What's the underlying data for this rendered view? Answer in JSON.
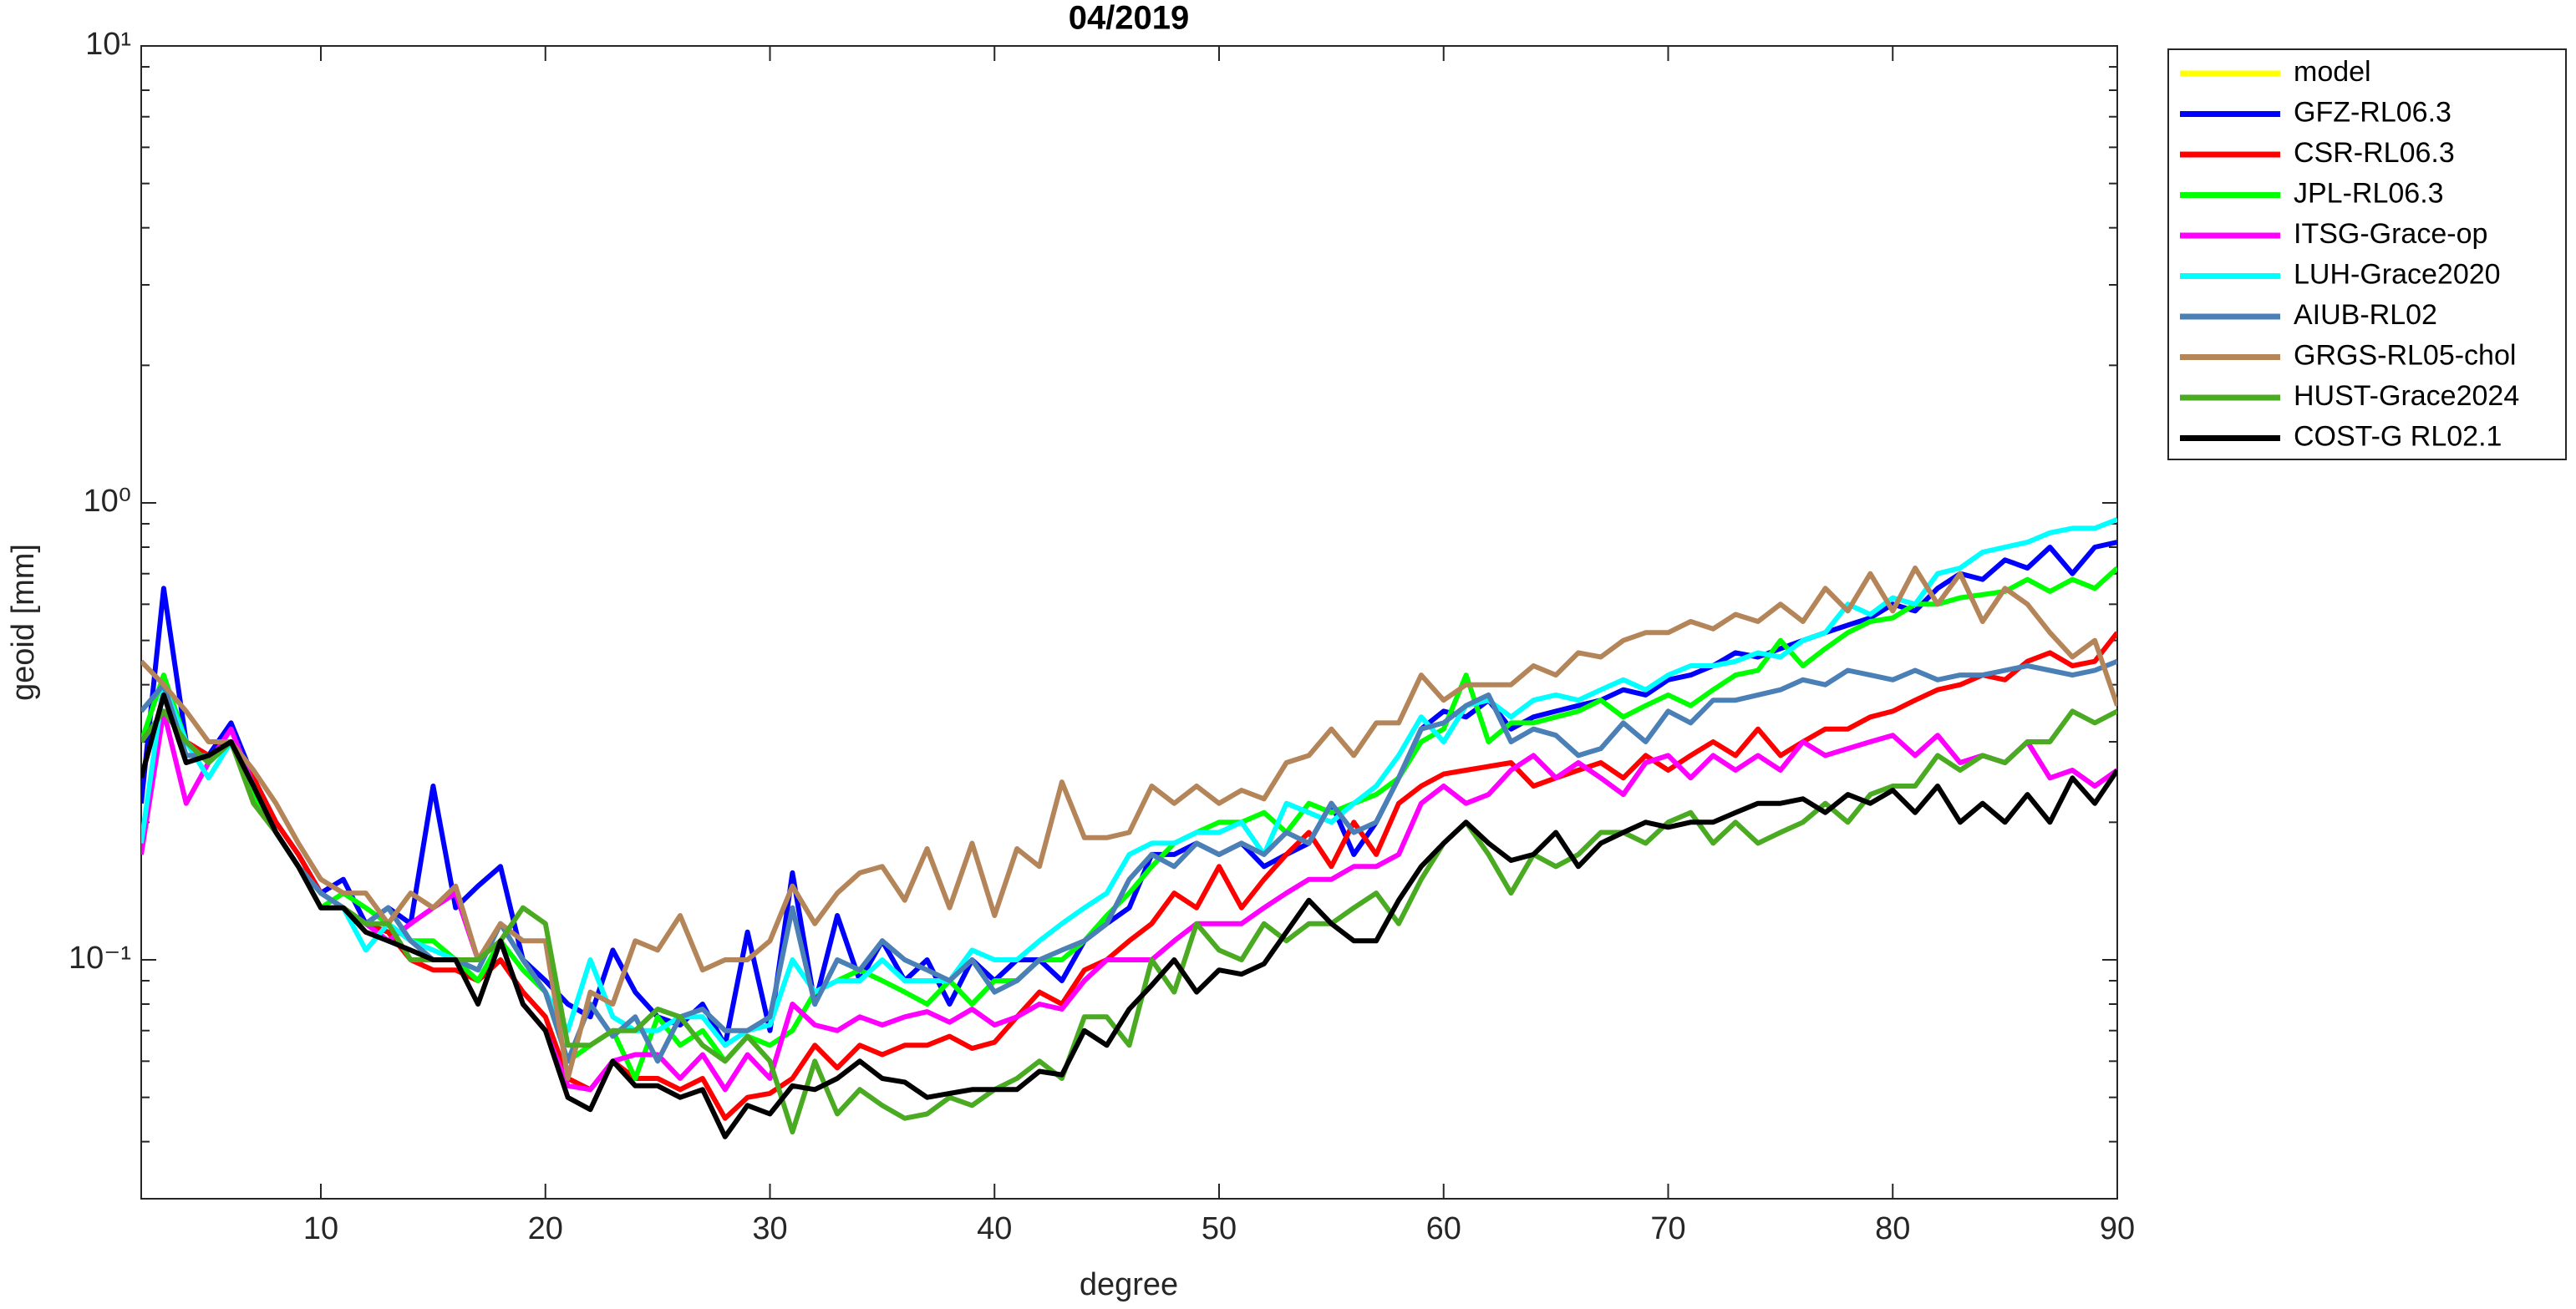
{
  "chart_data": {
    "type": "line",
    "title": "04/2019",
    "xlabel": "degree",
    "ylabel": "geoid [mm]",
    "log_y": true,
    "grid": false,
    "legend": "outside-right",
    "xlim": [
      2,
      90
    ],
    "xticks": [
      10,
      20,
      30,
      40,
      50,
      60,
      70,
      80,
      90
    ],
    "ylim": [
      0.03,
      10
    ],
    "yticks": [
      {
        "value": 0.1,
        "label": "10⁻¹"
      },
      {
        "value": 1,
        "label": "10⁰"
      },
      {
        "value": 10,
        "label": "10¹"
      }
    ],
    "yminorticks": [
      0.04,
      0.05,
      0.06,
      0.07,
      0.08,
      0.09,
      0.2,
      0.3,
      0.4,
      0.5,
      0.6,
      0.7,
      0.8,
      0.9,
      2,
      3,
      4,
      5,
      6,
      7,
      8,
      9
    ],
    "x": [
      2,
      3,
      4,
      5,
      6,
      7,
      8,
      9,
      10,
      11,
      12,
      13,
      14,
      15,
      16,
      17,
      18,
      19,
      20,
      21,
      22,
      23,
      24,
      25,
      26,
      27,
      28,
      29,
      30,
      31,
      32,
      33,
      34,
      35,
      36,
      37,
      38,
      39,
      40,
      41,
      42,
      43,
      44,
      45,
      46,
      47,
      48,
      49,
      50,
      51,
      52,
      53,
      54,
      55,
      56,
      57,
      58,
      59,
      60,
      61,
      62,
      63,
      64,
      65,
      66,
      67,
      68,
      69,
      70,
      71,
      72,
      73,
      74,
      75,
      76,
      77,
      78,
      79,
      80,
      81,
      82,
      83,
      84,
      85,
      86,
      87,
      88,
      89,
      90
    ],
    "series": [
      {
        "name": "model",
        "color": "#ffff00",
        "values": [
          null,
          null,
          null,
          null,
          null,
          null,
          null,
          null,
          null,
          null,
          null,
          null,
          null,
          null,
          null,
          null,
          null,
          null,
          null,
          null,
          null,
          null,
          null,
          null,
          null,
          null,
          null,
          null,
          null,
          null,
          null,
          null,
          null,
          null,
          null,
          null,
          null,
          null,
          null,
          null,
          null,
          null,
          null,
          null,
          null,
          null,
          null,
          null,
          null,
          null,
          null,
          null,
          null,
          null,
          null,
          null,
          null,
          null,
          null,
          null,
          null,
          null,
          null,
          null,
          null,
          null,
          null,
          null,
          null,
          null,
          null,
          null,
          null,
          null,
          null,
          null,
          null,
          null,
          null,
          null,
          null,
          null,
          null,
          null,
          null,
          null,
          null,
          null,
          null
        ]
      },
      {
        "name": "GFZ-RL06.3",
        "color": "#0000ff",
        "values": [
          0.22,
          0.65,
          0.3,
          0.28,
          0.33,
          0.25,
          0.2,
          0.17,
          0.14,
          0.15,
          0.12,
          0.13,
          0.12,
          0.24,
          0.13,
          0.145,
          0.16,
          0.1,
          0.09,
          0.08,
          0.075,
          0.105,
          0.085,
          0.075,
          0.072,
          0.08,
          0.065,
          0.115,
          0.07,
          0.155,
          0.08,
          0.125,
          0.09,
          0.11,
          0.09,
          0.1,
          0.08,
          0.1,
          0.09,
          0.1,
          0.1,
          0.09,
          0.11,
          0.12,
          0.13,
          0.17,
          0.17,
          0.18,
          0.17,
          0.18,
          0.16,
          0.17,
          0.18,
          0.22,
          0.17,
          0.2,
          0.25,
          0.32,
          0.35,
          0.34,
          0.37,
          0.32,
          0.34,
          0.35,
          0.36,
          0.37,
          0.39,
          0.38,
          0.41,
          0.42,
          0.44,
          0.47,
          0.46,
          0.48,
          0.5,
          0.52,
          0.54,
          0.56,
          0.6,
          0.58,
          0.65,
          0.7,
          0.68,
          0.75,
          0.72,
          0.8,
          0.7,
          0.8,
          0.82
        ]
      },
      {
        "name": "CSR-RL06.3",
        "color": "#ff0000",
        "values": [
          0.25,
          0.38,
          0.3,
          0.28,
          0.3,
          0.25,
          0.2,
          0.17,
          0.14,
          0.13,
          0.12,
          0.115,
          0.1,
          0.095,
          0.095,
          0.09,
          0.1,
          0.085,
          0.075,
          0.055,
          0.052,
          0.06,
          0.055,
          0.055,
          0.052,
          0.055,
          0.045,
          0.05,
          0.051,
          0.055,
          0.065,
          0.058,
          0.065,
          0.062,
          0.065,
          0.065,
          0.068,
          0.064,
          0.066,
          0.075,
          0.085,
          0.08,
          0.095,
          0.1,
          0.11,
          0.12,
          0.14,
          0.13,
          0.16,
          0.13,
          0.15,
          0.17,
          0.19,
          0.16,
          0.2,
          0.17,
          0.22,
          0.24,
          0.255,
          0.26,
          0.265,
          0.27,
          0.24,
          0.25,
          0.26,
          0.27,
          0.25,
          0.28,
          0.26,
          0.28,
          0.3,
          0.28,
          0.32,
          0.28,
          0.3,
          0.32,
          0.32,
          0.34,
          0.35,
          0.37,
          0.39,
          0.4,
          0.42,
          0.41,
          0.45,
          0.47,
          0.44,
          0.45,
          0.52
        ]
      },
      {
        "name": "JPL-RL06.3",
        "color": "#00ff00",
        "values": [
          0.3,
          0.42,
          0.3,
          0.27,
          0.3,
          0.23,
          0.19,
          0.16,
          0.13,
          0.14,
          0.13,
          0.12,
          0.11,
          0.11,
          0.1,
          0.09,
          0.11,
          0.095,
          0.085,
          0.06,
          0.065,
          0.07,
          0.055,
          0.075,
          0.065,
          0.07,
          0.06,
          0.068,
          0.065,
          0.07,
          0.085,
          0.09,
          0.095,
          0.09,
          0.085,
          0.08,
          0.09,
          0.08,
          0.09,
          0.09,
          0.1,
          0.1,
          0.11,
          0.125,
          0.14,
          0.16,
          0.18,
          0.19,
          0.2,
          0.2,
          0.21,
          0.19,
          0.22,
          0.21,
          0.22,
          0.23,
          0.25,
          0.3,
          0.32,
          0.42,
          0.3,
          0.33,
          0.33,
          0.34,
          0.35,
          0.37,
          0.34,
          0.36,
          0.38,
          0.36,
          0.39,
          0.42,
          0.43,
          0.5,
          0.44,
          0.48,
          0.52,
          0.55,
          0.56,
          0.6,
          0.6,
          0.62,
          0.63,
          0.64,
          0.68,
          0.64,
          0.68,
          0.65,
          0.72
        ]
      },
      {
        "name": "ITSG-Grace-op",
        "color": "#ff00ff",
        "values": [
          0.17,
          0.35,
          0.22,
          0.27,
          0.32,
          0.24,
          0.19,
          0.16,
          0.14,
          0.13,
          0.12,
          0.11,
          0.12,
          0.13,
          0.14,
          0.1,
          0.11,
          0.08,
          0.07,
          0.053,
          0.052,
          0.06,
          0.062,
          0.062,
          0.055,
          0.062,
          0.052,
          0.062,
          0.055,
          0.08,
          0.072,
          0.07,
          0.075,
          0.072,
          0.075,
          0.077,
          0.073,
          0.078,
          0.072,
          0.075,
          0.08,
          0.078,
          0.09,
          0.1,
          0.1,
          0.1,
          0.11,
          0.12,
          0.12,
          0.12,
          0.13,
          0.14,
          0.15,
          0.15,
          0.16,
          0.16,
          0.17,
          0.22,
          0.24,
          0.22,
          0.23,
          0.26,
          0.28,
          0.25,
          0.27,
          0.25,
          0.23,
          0.27,
          0.28,
          0.25,
          0.28,
          0.26,
          0.28,
          0.26,
          0.3,
          0.28,
          0.29,
          0.3,
          0.31,
          0.28,
          0.31,
          0.27,
          0.28,
          0.27,
          0.3,
          0.25,
          0.26,
          0.24,
          0.26
        ]
      },
      {
        "name": "LUH-Grace2020",
        "color": "#00ffff",
        "values": [
          0.18,
          0.4,
          0.3,
          0.25,
          0.3,
          0.24,
          0.19,
          0.16,
          0.14,
          0.13,
          0.105,
          0.12,
          0.11,
          0.105,
          0.1,
          0.095,
          0.12,
          0.1,
          0.085,
          0.07,
          0.1,
          0.075,
          0.07,
          0.07,
          0.075,
          0.075,
          0.065,
          0.07,
          0.072,
          0.1,
          0.085,
          0.09,
          0.09,
          0.1,
          0.09,
          0.09,
          0.09,
          0.105,
          0.1,
          0.1,
          0.11,
          0.12,
          0.13,
          0.14,
          0.17,
          0.18,
          0.18,
          0.19,
          0.19,
          0.2,
          0.17,
          0.22,
          0.21,
          0.2,
          0.22,
          0.24,
          0.28,
          0.34,
          0.3,
          0.36,
          0.37,
          0.34,
          0.37,
          0.38,
          0.37,
          0.39,
          0.41,
          0.39,
          0.42,
          0.44,
          0.44,
          0.45,
          0.47,
          0.46,
          0.5,
          0.52,
          0.6,
          0.57,
          0.62,
          0.6,
          0.7,
          0.72,
          0.78,
          0.8,
          0.82,
          0.86,
          0.88,
          0.88,
          0.92
        ]
      },
      {
        "name": "AIUB-RL02",
        "color": "#4a80b6",
        "values": [
          0.35,
          0.4,
          0.28,
          0.28,
          0.3,
          0.24,
          0.19,
          0.16,
          0.14,
          0.13,
          0.12,
          0.13,
          0.11,
          0.1,
          0.1,
          0.095,
          0.12,
          0.1,
          0.085,
          0.06,
          0.08,
          0.068,
          0.075,
          0.06,
          0.075,
          0.078,
          0.07,
          0.07,
          0.075,
          0.13,
          0.08,
          0.1,
          0.095,
          0.11,
          0.1,
          0.095,
          0.09,
          0.1,
          0.085,
          0.09,
          0.1,
          0.105,
          0.11,
          0.12,
          0.15,
          0.17,
          0.16,
          0.18,
          0.17,
          0.18,
          0.17,
          0.19,
          0.18,
          0.22,
          0.19,
          0.2,
          0.25,
          0.32,
          0.33,
          0.36,
          0.38,
          0.3,
          0.32,
          0.31,
          0.28,
          0.29,
          0.33,
          0.3,
          0.35,
          0.33,
          0.37,
          0.37,
          0.38,
          0.39,
          0.41,
          0.4,
          0.43,
          0.42,
          0.41,
          0.43,
          0.41,
          0.42,
          0.42,
          0.43,
          0.44,
          0.43,
          0.42,
          0.43,
          0.45
        ]
      },
      {
        "name": "GRGS-RL05-chol",
        "color": "#b5855a",
        "values": [
          0.45,
          0.4,
          0.35,
          0.3,
          0.3,
          0.26,
          0.22,
          0.18,
          0.15,
          0.14,
          0.14,
          0.12,
          0.14,
          0.13,
          0.145,
          0.1,
          0.12,
          0.11,
          0.11,
          0.055,
          0.085,
          0.08,
          0.11,
          0.105,
          0.125,
          0.095,
          0.1,
          0.1,
          0.11,
          0.145,
          0.12,
          0.14,
          0.155,
          0.16,
          0.135,
          0.175,
          0.13,
          0.18,
          0.125,
          0.175,
          0.16,
          0.245,
          0.185,
          0.185,
          0.19,
          0.24,
          0.22,
          0.24,
          0.22,
          0.235,
          0.225,
          0.27,
          0.28,
          0.32,
          0.28,
          0.33,
          0.33,
          0.42,
          0.37,
          0.4,
          0.4,
          0.4,
          0.44,
          0.42,
          0.47,
          0.46,
          0.5,
          0.52,
          0.52,
          0.55,
          0.53,
          0.57,
          0.55,
          0.6,
          0.55,
          0.65,
          0.58,
          0.7,
          0.58,
          0.72,
          0.6,
          0.7,
          0.55,
          0.65,
          0.6,
          0.52,
          0.46,
          0.5,
          0.36
        ]
      },
      {
        "name": "HUST-Grace2024",
        "color": "#4aaa22",
        "values": [
          0.3,
          0.35,
          0.3,
          0.27,
          0.3,
          0.22,
          0.19,
          0.16,
          0.13,
          0.13,
          0.12,
          0.12,
          0.1,
          0.1,
          0.1,
          0.1,
          0.11,
          0.13,
          0.12,
          0.065,
          0.065,
          0.07,
          0.07,
          0.078,
          0.075,
          0.065,
          0.06,
          0.068,
          0.06,
          0.042,
          0.06,
          0.046,
          0.052,
          0.048,
          0.045,
          0.046,
          0.05,
          0.048,
          0.052,
          0.055,
          0.06,
          0.055,
          0.075,
          0.075,
          0.065,
          0.1,
          0.085,
          0.12,
          0.105,
          0.1,
          0.12,
          0.11,
          0.12,
          0.12,
          0.13,
          0.14,
          0.12,
          0.15,
          0.18,
          0.2,
          0.17,
          0.14,
          0.17,
          0.16,
          0.17,
          0.19,
          0.19,
          0.18,
          0.2,
          0.21,
          0.18,
          0.2,
          0.18,
          0.19,
          0.2,
          0.22,
          0.2,
          0.23,
          0.24,
          0.24,
          0.28,
          0.26,
          0.28,
          0.27,
          0.3,
          0.3,
          0.35,
          0.33,
          0.35
        ]
      },
      {
        "name": "COST-G RL02.1",
        "color": "#000000",
        "values": [
          0.25,
          0.38,
          0.27,
          0.28,
          0.3,
          0.24,
          0.19,
          0.16,
          0.13,
          0.13,
          0.115,
          0.11,
          0.105,
          0.1,
          0.1,
          0.08,
          0.11,
          0.08,
          0.07,
          0.05,
          0.047,
          0.06,
          0.053,
          0.053,
          0.05,
          0.052,
          0.041,
          0.048,
          0.046,
          0.053,
          0.052,
          0.055,
          0.06,
          0.055,
          0.054,
          0.05,
          0.051,
          0.052,
          0.052,
          0.052,
          0.057,
          0.056,
          0.07,
          0.065,
          0.078,
          0.088,
          0.1,
          0.085,
          0.095,
          0.093,
          0.098,
          0.115,
          0.135,
          0.12,
          0.11,
          0.11,
          0.135,
          0.16,
          0.18,
          0.2,
          0.18,
          0.165,
          0.17,
          0.19,
          0.16,
          0.18,
          0.19,
          0.2,
          0.195,
          0.2,
          0.2,
          0.21,
          0.22,
          0.22,
          0.225,
          0.21,
          0.23,
          0.22,
          0.235,
          0.21,
          0.24,
          0.2,
          0.22,
          0.2,
          0.23,
          0.2,
          0.25,
          0.22,
          0.26
        ]
      }
    ]
  }
}
